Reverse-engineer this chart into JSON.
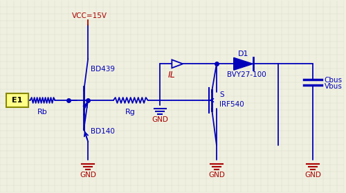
{
  "bg_color": "#f0f0e0",
  "line_color": "#0000bb",
  "red_color": "#aa0000",
  "gnd_color": "#aa0000",
  "vcc_color": "#aa0000",
  "e1_fill": "#ffff88",
  "e1_border": "#888800",
  "grid_color": "#d8d8c8",
  "figsize": [
    5.0,
    2.79
  ],
  "dpi": 100,
  "labels": {
    "vcc": "VCC=15V",
    "bd439": "BD439",
    "bd140": "BD140",
    "rb": "Rb",
    "rg": "Rg",
    "il": "IL",
    "gnd": "GND",
    "d1": "D1",
    "diode": "BVY27-100",
    "mosfet": "IRF540",
    "s": "S",
    "e1": "E1",
    "cbus": "Cbus",
    "vbus": "Vbus"
  }
}
